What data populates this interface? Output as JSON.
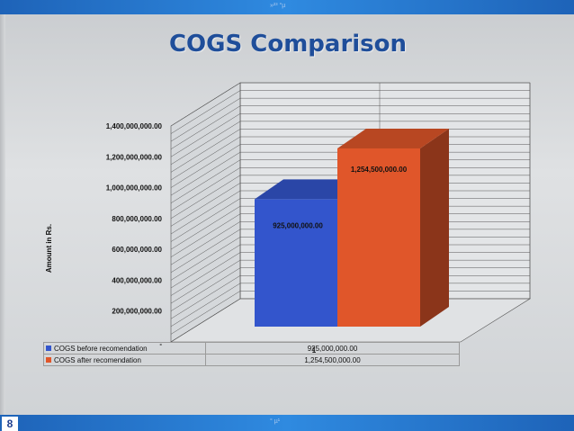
{
  "slide": {
    "title": "COGS Comparison",
    "number": "8",
    "top_mark": "»²³ °µ",
    "bottom_mark": "° µ¹"
  },
  "chart_data": {
    "type": "bar",
    "title": "COGS Comparison",
    "xlabel": "",
    "ylabel": "Amount in Rs.",
    "categories": [
      "1"
    ],
    "series": [
      {
        "name": "COGS before recomendation",
        "values": [
          925000000
        ],
        "label": "925,000,000.00",
        "color": "#3355cc"
      },
      {
        "name": "COGS after recomendation",
        "values": [
          1254500000
        ],
        "label": "1,254,500,000.00",
        "color": "#e0562a"
      }
    ],
    "ylim": [
      0,
      1400000000
    ],
    "y_ticks": [
      {
        "value": 0,
        "label": "-"
      },
      {
        "value": 200000000,
        "label": "200,000,000.00"
      },
      {
        "value": 400000000,
        "label": "400,000,000.00"
      },
      {
        "value": 600000000,
        "label": "600,000,000.00"
      },
      {
        "value": 800000000,
        "label": "800,000,000.00"
      },
      {
        "value": 1000000000,
        "label": "1,000,000,000.00"
      },
      {
        "value": 1200000000,
        "label": "1,200,000,000.00"
      },
      {
        "value": 1400000000,
        "label": "1,400,000,000.00"
      }
    ],
    "grid": true,
    "style": "3d-column",
    "legend": "data-table"
  }
}
